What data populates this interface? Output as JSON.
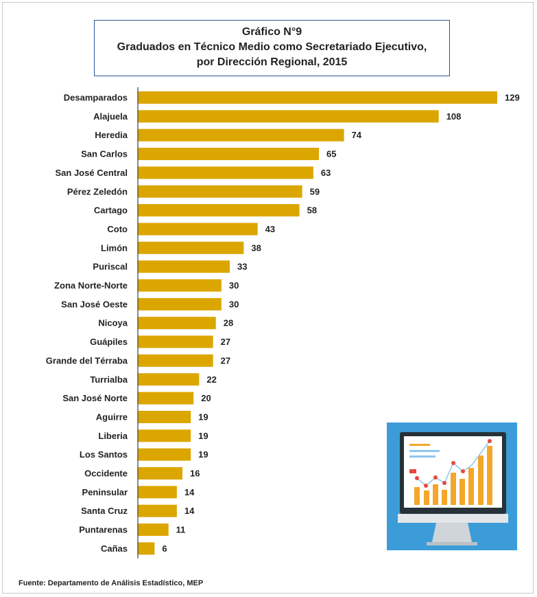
{
  "chart_title": {
    "line1": "Gráfico N°9",
    "line2": "Graduados en Técnico Medio como Secretariado Ejecutivo,",
    "line3": "por Dirección Regional, 2015"
  },
  "source": "Fuente: Departamento de Análisis Estadístico, MEP",
  "colors": {
    "bar": "#dca600",
    "title_border": "#2f5496",
    "axis": "#2f3b55",
    "icon_background": "#3b9cd8",
    "icon_bars": "#f4a62a",
    "icon_points": "#e8473f"
  },
  "decoration": {
    "icon": "monitor-chart-icon"
  },
  "chart_data": {
    "type": "bar",
    "orientation": "horizontal",
    "categories": [
      "Desamparados",
      "Alajuela",
      "Heredia",
      "San Carlos",
      "San José Central",
      "Pérez Zeledón",
      "Cartago",
      "Coto",
      "Limón",
      "Puriscal",
      "Zona Norte-Norte",
      "San José Oeste",
      "Nicoya",
      "Guápiles",
      "Grande del Térraba",
      "Turrialba",
      "San José Norte",
      "Aguirre",
      "Liberia",
      "Los Santos",
      "Occidente",
      "Peninsular",
      "Santa Cruz",
      "Puntarenas",
      "Cañas"
    ],
    "values": [
      129,
      108,
      74,
      65,
      63,
      59,
      58,
      43,
      38,
      33,
      30,
      30,
      28,
      27,
      27,
      22,
      20,
      19,
      19,
      19,
      16,
      14,
      14,
      11,
      6
    ],
    "title": "Gráfico N°9 Graduados en Técnico Medio como Secretariado Ejecutivo, por Dirección Regional, 2015",
    "xlabel": "",
    "ylabel": "",
    "xlim": [
      0,
      129
    ],
    "grid": false,
    "legend": "none",
    "data_labels": true
  }
}
